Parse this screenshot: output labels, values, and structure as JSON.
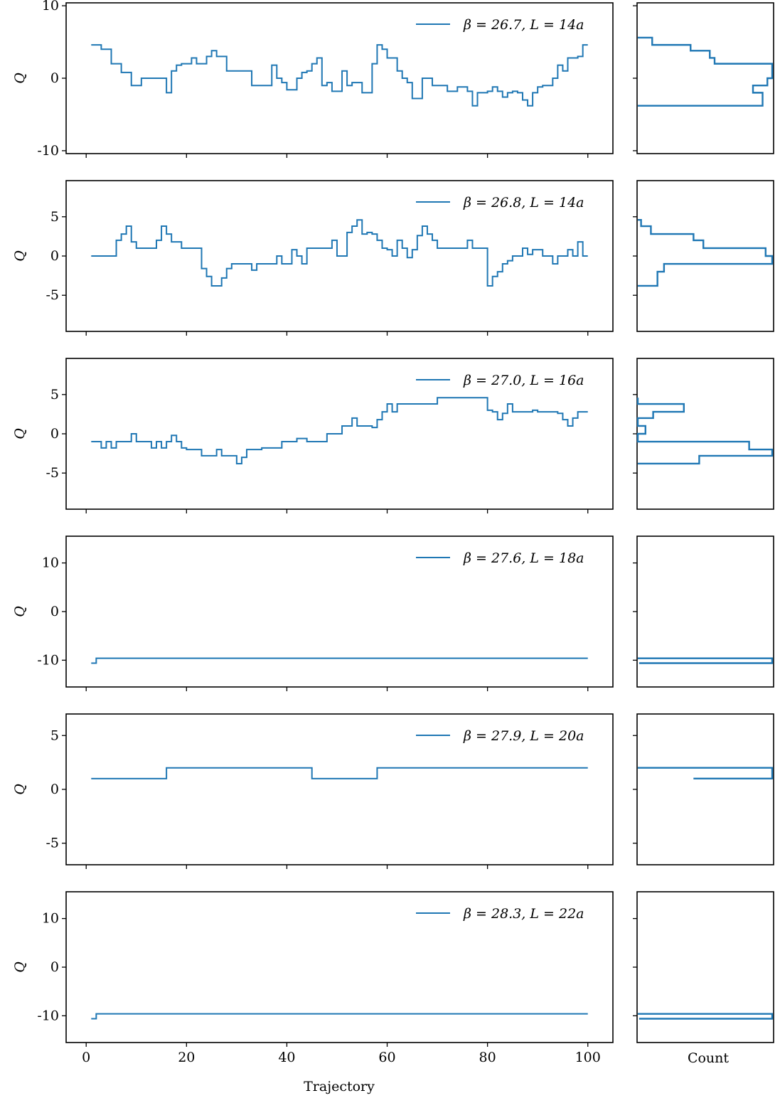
{
  "figure": {
    "xlabel": "Trajectory",
    "hist_xlabel": "Count",
    "series_color": "#1f77b4"
  },
  "chart_data": [
    {
      "type": "line",
      "legend": "β = 26.7, L = 14a",
      "ylabel": "Q",
      "xlim": [
        -4,
        105
      ],
      "ylim": [
        -10.4,
        10.4
      ],
      "yticks": [
        10,
        0,
        -10
      ],
      "ytick_labels": [
        "10",
        "0",
        "-10"
      ],
      "xticks": [
        0,
        20,
        40,
        60,
        80,
        100
      ],
      "step_x": [
        1,
        2,
        3,
        5,
        7,
        9,
        11,
        14,
        16,
        17,
        18,
        19,
        20,
        21,
        22,
        23,
        24,
        25,
        26,
        28,
        33,
        36,
        37,
        38,
        39,
        40,
        42,
        43,
        44,
        45,
        46,
        47,
        48,
        49,
        51,
        52,
        53,
        55,
        56,
        57,
        58,
        59,
        60,
        62,
        63,
        64,
        65,
        67,
        69,
        72,
        74,
        76,
        77,
        78,
        80,
        81,
        82,
        83,
        84,
        85,
        86,
        87,
        88,
        89,
        90,
        91,
        93,
        94,
        95,
        96,
        98,
        99,
        100
      ],
      "step_y": [
        4.6,
        4.6,
        4,
        2,
        0.8,
        -1,
        0,
        0,
        -2,
        1,
        1.8,
        2,
        2,
        2.8,
        2,
        2,
        3,
        3.8,
        3,
        1,
        -1,
        -1,
        1.8,
        0,
        -0.6,
        -1.6,
        0,
        0.8,
        1,
        2,
        2.8,
        -1,
        -0.6,
        -1.8,
        1,
        -1,
        -0.6,
        -2,
        -2,
        2,
        4.6,
        4,
        2.8,
        1,
        0,
        -0.6,
        -2.8,
        0,
        -1,
        -1.8,
        -1.2,
        -1.8,
        -3.8,
        -2,
        -1.8,
        -1.2,
        -1.8,
        -2.6,
        -2,
        -1.8,
        -2,
        -3,
        -3.8,
        -2,
        -1.2,
        -1,
        0,
        1.8,
        1,
        2.8,
        3,
        4.6,
        4.6
      ],
      "hist_levels": [
        5.6,
        4.6,
        3.8,
        2.8,
        2,
        1,
        0,
        -1,
        -2,
        -3.8
      ],
      "hist_counts": [
        3,
        11,
        15,
        16,
        28,
        28,
        27,
        24,
        26,
        0
      ]
    },
    {
      "type": "line",
      "legend": "β = 26.8, L = 14a",
      "ylabel": "Q",
      "xlim": [
        -4,
        105
      ],
      "ylim": [
        -9.6,
        9.6
      ],
      "yticks": [
        5,
        0,
        -5
      ],
      "ytick_labels": [
        "5",
        "0",
        "-5"
      ],
      "xticks": [
        0,
        20,
        40,
        60,
        80,
        100
      ],
      "step_x": [
        1,
        2,
        3,
        5,
        6,
        7,
        8,
        9,
        10,
        12,
        14,
        15,
        16,
        17,
        19,
        21,
        23,
        24,
        25,
        26,
        27,
        28,
        29,
        30,
        31,
        32,
        33,
        34,
        35,
        37,
        38,
        39,
        40,
        41,
        42,
        43,
        44,
        48,
        49,
        50,
        52,
        53,
        54,
        55,
        56,
        57,
        58,
        59,
        60,
        61,
        62,
        63,
        64,
        65,
        66,
        67,
        68,
        69,
        70,
        73,
        75,
        76,
        77,
        80,
        81,
        82,
        83,
        84,
        85,
        86,
        87,
        88,
        89,
        91,
        93,
        94,
        95,
        96,
        97,
        98,
        99,
        100
      ],
      "step_y": [
        0,
        0,
        0,
        0,
        2,
        2.8,
        3.8,
        1.8,
        1,
        1,
        2,
        3.8,
        2.8,
        1.8,
        1,
        1,
        -1.6,
        -2.6,
        -3.8,
        -3.8,
        -2.8,
        -1.6,
        -1,
        -1,
        -1,
        -1,
        -1.8,
        -1,
        -1,
        -1,
        0,
        -1,
        -1,
        0.8,
        0,
        -1,
        1,
        1,
        2,
        0,
        3,
        3.8,
        4.6,
        2.8,
        3,
        2.8,
        2,
        1,
        0.8,
        0,
        2,
        1,
        -0.2,
        0.8,
        2.6,
        3.8,
        2.8,
        2,
        1,
        1,
        1,
        2,
        1,
        -3.8,
        -2.6,
        -2,
        -1,
        -0.6,
        0,
        0,
        1,
        0.2,
        0.8,
        0,
        -1,
        0,
        0,
        0.8,
        0,
        1.8,
        0,
        0
      ],
      "hist_levels": [
        4.6,
        3.8,
        2.8,
        2,
        1,
        0,
        -1,
        -2,
        -3.8
      ],
      "hist_counts": [
        1,
        4,
        17,
        20,
        39,
        41,
        8,
        6,
        0
      ]
    },
    {
      "type": "line",
      "legend": "β = 27.0, L = 16a",
      "ylabel": "Q",
      "xlim": [
        -4,
        105
      ],
      "ylim": [
        -9.6,
        9.6
      ],
      "yticks": [
        5,
        0,
        -5
      ],
      "ytick_labels": [
        "5",
        "0",
        "-5"
      ],
      "xticks": [
        0,
        20,
        40,
        60,
        80,
        100
      ],
      "step_x": [
        1,
        2,
        3,
        4,
        5,
        6,
        9,
        10,
        11,
        12,
        13,
        14,
        15,
        16,
        17,
        18,
        19,
        20,
        21,
        23,
        26,
        27,
        29,
        30,
        31,
        32,
        35,
        39,
        40,
        42,
        44,
        46,
        47,
        48,
        51,
        53,
        54,
        56,
        57,
        58,
        59,
        60,
        61,
        62,
        63,
        64,
        65,
        67,
        68,
        69,
        70,
        72,
        74,
        79,
        80,
        81,
        82,
        83,
        84,
        85,
        86,
        87,
        88,
        89,
        90,
        92,
        94,
        95,
        96,
        97,
        98,
        99,
        100
      ],
      "step_y": [
        -1,
        -1,
        -1.8,
        -1,
        -1.8,
        -1,
        0,
        -1,
        -1,
        -1,
        -1.8,
        -1,
        -1.8,
        -1,
        -0.2,
        -1,
        -1.8,
        -2,
        -2,
        -2.8,
        -2,
        -2.8,
        -2.8,
        -3.8,
        -3,
        -2,
        -1.8,
        -1,
        -1,
        -0.6,
        -1,
        -1,
        -1,
        0,
        1,
        2,
        1,
        1,
        0.8,
        1.8,
        2.8,
        3.8,
        2.8,
        3.8,
        3.8,
        3.8,
        3.8,
        3.8,
        3.8,
        3.8,
        4.6,
        4.6,
        4.6,
        4.6,
        3,
        2.8,
        1.8,
        2.6,
        3.8,
        2.8,
        2.8,
        2.8,
        2.8,
        3,
        2.8,
        2.8,
        2.6,
        1.8,
        1,
        2,
        2.8,
        2.8,
        2.8
      ],
      "hist_levels": [
        4.6,
        3.8,
        2.8,
        2,
        1,
        0,
        -1,
        -2,
        -2.8,
        -3.8
      ],
      "hist_counts": [
        0,
        12,
        4,
        0,
        2,
        0,
        29,
        35,
        16,
        0
      ]
    },
    {
      "type": "line",
      "legend": "β = 27.6, L = 18a",
      "ylabel": "Q",
      "xlim": [
        -4,
        105
      ],
      "ylim": [
        -15.5,
        15.5
      ],
      "yticks": [
        10,
        0,
        -10
      ],
      "ytick_labels": [
        "10",
        "0",
        "-10"
      ],
      "xticks": [
        0,
        20,
        40,
        60,
        80,
        100
      ],
      "step_x": [
        1,
        2,
        100
      ],
      "step_y": [
        -10.6,
        -9.6,
        -9.6
      ],
      "hist_levels": [
        -9.6,
        -10.6
      ],
      "hist_counts": [
        100,
        1
      ]
    },
    {
      "type": "line",
      "legend": "β = 27.9, L = 20a",
      "ylabel": "Q",
      "xlim": [
        -4,
        105
      ],
      "ylim": [
        -7,
        7
      ],
      "yticks": [
        5,
        0,
        -5
      ],
      "ytick_labels": [
        "5",
        "0",
        "-5"
      ],
      "xticks": [
        0,
        20,
        40,
        60,
        80,
        100
      ],
      "step_x": [
        1,
        16,
        45,
        58,
        100
      ],
      "step_y": [
        1,
        2,
        1,
        2,
        2
      ],
      "hist_levels": [
        2,
        1
      ],
      "hist_counts": [
        70,
        29
      ]
    },
    {
      "type": "line",
      "legend": "β = 28.3, L = 22a",
      "ylabel": "Q",
      "xlim": [
        -4,
        105
      ],
      "ylim": [
        -15.5,
        15.5
      ],
      "yticks": [
        10,
        0,
        -10
      ],
      "ytick_labels": [
        "10",
        "0",
        "-10"
      ],
      "xticks": [
        0,
        20,
        40,
        60,
        80,
        100
      ],
      "xtick_labels": [
        "0",
        "20",
        "40",
        "60",
        "80",
        "100"
      ],
      "step_x": [
        1,
        2,
        100
      ],
      "step_y": [
        -10.6,
        -9.6,
        -9.6
      ],
      "hist_levels": [
        -9.6,
        -10.6
      ],
      "hist_counts": [
        100,
        1
      ]
    }
  ]
}
